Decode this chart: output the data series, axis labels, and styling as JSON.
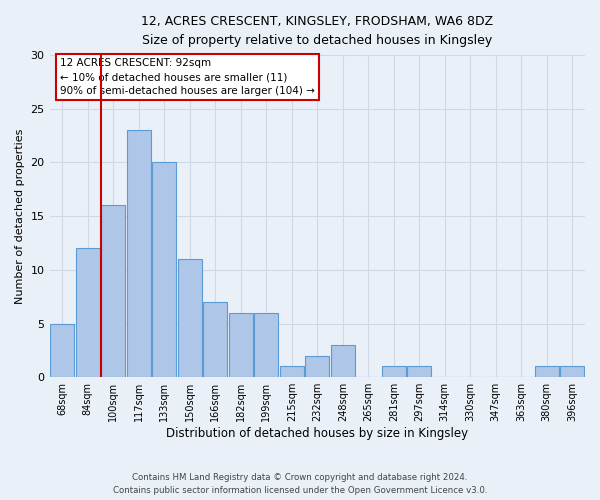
{
  "title1": "12, ACRES CRESCENT, KINGSLEY, FRODSHAM, WA6 8DZ",
  "title2": "Size of property relative to detached houses in Kingsley",
  "xlabel": "Distribution of detached houses by size in Kingsley",
  "ylabel": "Number of detached properties",
  "categories": [
    "68sqm",
    "84sqm",
    "100sqm",
    "117sqm",
    "133sqm",
    "150sqm",
    "166sqm",
    "182sqm",
    "199sqm",
    "215sqm",
    "232sqm",
    "248sqm",
    "265sqm",
    "281sqm",
    "297sqm",
    "314sqm",
    "330sqm",
    "347sqm",
    "363sqm",
    "380sqm",
    "396sqm"
  ],
  "values": [
    5,
    12,
    16,
    23,
    20,
    11,
    7,
    6,
    6,
    1,
    2,
    3,
    0,
    1,
    1,
    0,
    0,
    0,
    0,
    1,
    1
  ],
  "bar_color": "#aec6e8",
  "bar_edge_color": "#5b9bd5",
  "grid_color": "#d0d8e8",
  "background_color": "#eaf0f8",
  "annotation_box_text": "12 ACRES CRESCENT: 92sqm\n← 10% of detached houses are smaller (11)\n90% of semi-detached houses are larger (104) →",
  "annotation_box_color": "#ffffff",
  "annotation_box_edge_color": "#cc0000",
  "vline_x": 1.5,
  "vline_color": "#cc0000",
  "ylim": [
    0,
    30
  ],
  "yticks": [
    0,
    5,
    10,
    15,
    20,
    25,
    30
  ],
  "footer_line1": "Contains HM Land Registry data © Crown copyright and database right 2024.",
  "footer_line2": "Contains public sector information licensed under the Open Government Licence v3.0."
}
